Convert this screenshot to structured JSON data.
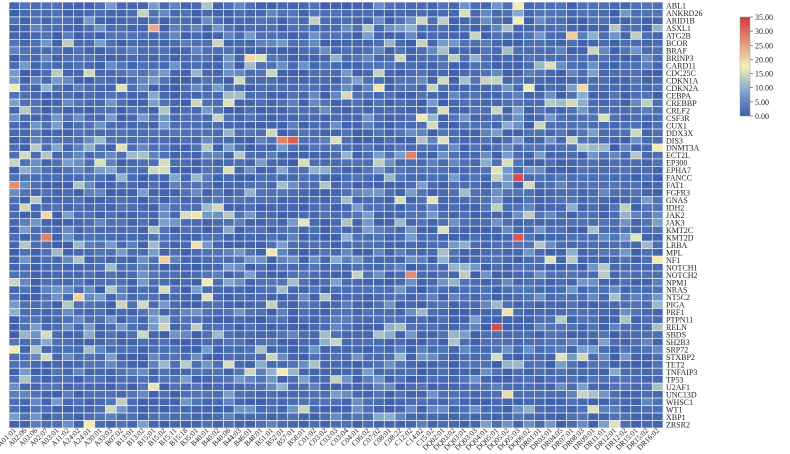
{
  "chart_data": {
    "type": "heatmap",
    "title": "",
    "xlabel": "",
    "ylabel": "",
    "genes": [
      "ABL1",
      "ANKRD26",
      "ARID1B",
      "ASXL1",
      "ATG2B",
      "BCOR",
      "BRAF",
      "BRINP3",
      "CARD11",
      "CDC25C",
      "CDKN1A",
      "CDKN2A",
      "CEBPA",
      "CREBBP",
      "CRLF2",
      "CSF3R",
      "CUX1",
      "DDX3X",
      "DIS3",
      "DNMT3A",
      "ECT2L",
      "EP300",
      "EPHA7",
      "FANCC",
      "FAT1",
      "FGFR3",
      "GNAS",
      "IDH2",
      "JAK2",
      "JAK3",
      "KMT2C",
      "KMT2D",
      "LRBA",
      "MPL",
      "NF1",
      "NOTCH1",
      "NOTCH2",
      "NPM1",
      "NRAS",
      "NT5C2",
      "PIGA",
      "PRF1",
      "PTPN11",
      "RELN",
      "SBDS",
      "SH2B3",
      "SRP72",
      "STXBP2",
      "TET2",
      "TNFAIP3",
      "TP53",
      "U2AF1",
      "UNC13D",
      "WHSC1",
      "WT1",
      "XBP1",
      "ZRSR2"
    ],
    "sample_labels": [
      "A01:01",
      "A02:06",
      "A03:06",
      "A02:07",
      "A03:01",
      "A11:02",
      "A24:02",
      "A24:01",
      "A30:01",
      "A33:03",
      "B07:02",
      "B13:01",
      "B13:02",
      "B15:01",
      "B15:02",
      "B15:11",
      "B15:18",
      "B35:01",
      "B40:01",
      "B40:02",
      "B40:06",
      "B44:03",
      "B46:01",
      "B48:01",
      "B51:01",
      "B52:01",
      "B57:01",
      "B58:01",
      "C01:02",
      "C03:02",
      "C03:03",
      "C03:04",
      "C04:01",
      "C06:02",
      "C07:02",
      "C08:01",
      "C08:22",
      "C12:02",
      "C14:02",
      "C15:02",
      "DQ02:01",
      "DQ03:02",
      "DQ03:01",
      "DQ03:03",
      "DQ04:01",
      "DQ05:01",
      "DQ05:02",
      "DQ05:03",
      "DQ06:02",
      "DR01:01",
      "DR03:01",
      "DR04:05",
      "DR07:01",
      "DR08:03",
      "DR09:01",
      "DR11:01",
      "DR12:01",
      "DR12:02",
      "DR15:01",
      "DR15:02",
      "DR16:02"
    ],
    "n_columns": 61,
    "colorbar": {
      "min": 0,
      "max": 35,
      "ticks": [
        "35.00",
        "30.00",
        "25.00",
        "20.00",
        "15.00",
        "10.00",
        "5.00",
        "0.00"
      ],
      "colors": [
        "#3a5ba8",
        "#7fa6d0",
        "#f4f0b6",
        "#d2373a"
      ]
    },
    "hotspots": [
      {
        "gene": "DIS3",
        "column": 26,
        "value": 31
      },
      {
        "gene": "DIS3",
        "column": 25,
        "value": 28
      },
      {
        "gene": "FANCC",
        "column": 47,
        "value": 33
      },
      {
        "gene": "FAT1",
        "column": 0,
        "value": 27
      },
      {
        "gene": "KMT2D",
        "column": 47,
        "value": 32
      },
      {
        "gene": "KMT2D",
        "column": 3,
        "value": 28
      },
      {
        "gene": "RELN",
        "column": 45,
        "value": 33
      },
      {
        "gene": "NOTCH2",
        "column": 37,
        "value": 27
      },
      {
        "gene": "ECT2L",
        "column": 37,
        "value": 28
      },
      {
        "gene": "ASXL1",
        "column": 13,
        "value": 24
      }
    ]
  }
}
